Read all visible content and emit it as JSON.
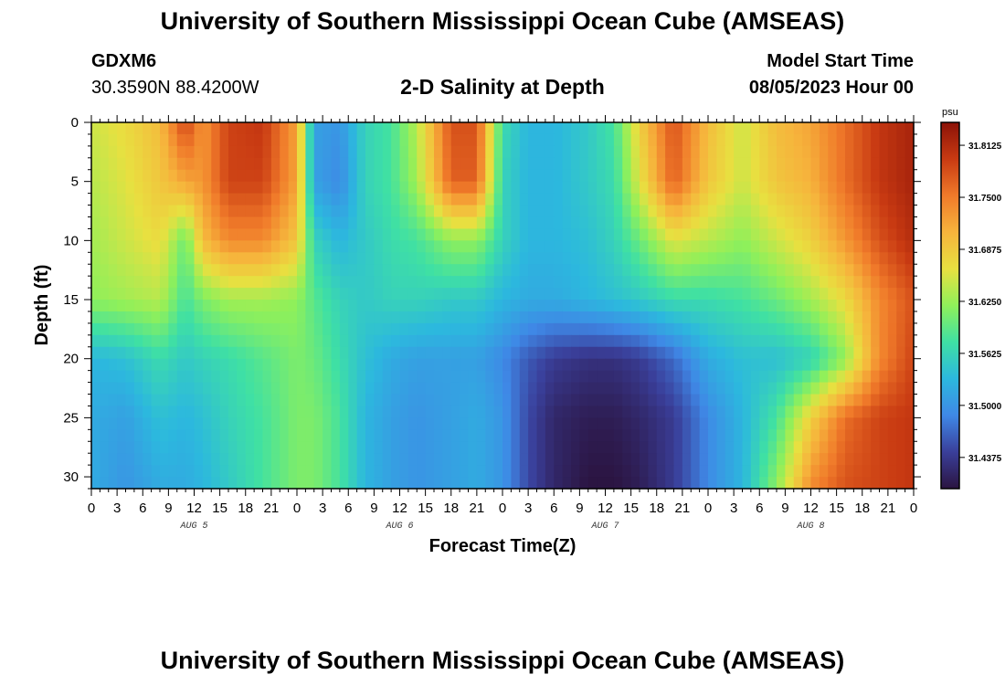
{
  "header": {
    "title": "University of Southern Mississippi Ocean Cube (AMSEAS)",
    "station": "GDXM6",
    "coords": "30.3590N  88.4200W",
    "subtitle": "2-D Salinity at Depth",
    "start_label": "Model Start Time",
    "start_value": "08/05/2023 Hour 00"
  },
  "footer": {
    "title": "University of Southern Mississippi Ocean Cube (AMSEAS)"
  },
  "colors": {
    "scale": [
      "#2b1440",
      "#3a3f9a",
      "#3f88e6",
      "#2cb8de",
      "#3fe0a4",
      "#8ff05a",
      "#e8e040",
      "#f6b43c",
      "#f07a2a",
      "#c83a12",
      "#8c1208"
    ]
  },
  "chart_data": {
    "type": "heatmap",
    "xlabel": "Forecast Time(Z)",
    "ylabel": "Depth (ft)",
    "x_hour_range": [
      0,
      96
    ],
    "y_range": [
      0,
      31
    ],
    "x_tick_labels": [
      "0",
      "3",
      "6",
      "9",
      "12",
      "15",
      "18",
      "21",
      "0",
      "3",
      "6",
      "9",
      "12",
      "15",
      "18",
      "21",
      "0",
      "3",
      "6",
      "9",
      "12",
      "15",
      "18",
      "21",
      "0",
      "3",
      "6",
      "9",
      "12",
      "15",
      "18",
      "21",
      "0"
    ],
    "y_ticks": [
      0,
      5,
      10,
      15,
      20,
      25,
      30
    ],
    "day_labels": [
      {
        "hour": 12,
        "label": "AUG 5"
      },
      {
        "hour": 36,
        "label": "AUG 6"
      },
      {
        "hour": 60,
        "label": "AUG 7"
      },
      {
        "hour": 84,
        "label": "AUG 8"
      }
    ],
    "colorbar": {
      "unit": "psu",
      "range": [
        31.4,
        31.84
      ],
      "tick_values": [
        31.8125,
        31.75,
        31.6875,
        31.625,
        31.5625,
        31.5,
        31.4375
      ],
      "tick_labels": [
        "31.8125",
        "31.7500",
        "31.6875",
        "31.6250",
        "31.5625",
        "31.5000",
        "31.4375"
      ]
    },
    "hours": [
      0,
      4,
      8,
      11,
      13,
      16,
      20,
      24,
      26,
      29,
      32,
      35,
      38,
      42,
      45,
      48,
      51,
      54,
      58,
      61,
      64,
      68,
      72,
      76,
      80,
      84,
      88,
      92,
      96
    ],
    "depths": [
      0,
      5,
      10,
      15,
      20,
      25,
      31
    ],
    "values": [
      [
        31.65,
        31.67,
        31.7,
        31.79,
        31.73,
        31.79,
        31.8,
        31.72,
        31.51,
        31.5,
        31.56,
        31.58,
        31.64,
        31.78,
        31.78,
        31.57,
        31.53,
        31.53,
        31.55,
        31.58,
        31.68,
        31.78,
        31.7,
        31.65,
        31.7,
        31.72,
        31.76,
        31.8,
        31.82
      ],
      [
        31.64,
        31.66,
        31.69,
        31.72,
        31.73,
        31.79,
        31.79,
        31.72,
        31.51,
        31.49,
        31.56,
        31.58,
        31.63,
        31.77,
        31.77,
        31.56,
        31.53,
        31.53,
        31.55,
        31.57,
        31.66,
        31.77,
        31.69,
        31.65,
        31.69,
        31.71,
        31.76,
        31.8,
        31.82
      ],
      [
        31.63,
        31.65,
        31.67,
        31.6,
        31.7,
        31.74,
        31.74,
        31.69,
        31.56,
        31.53,
        31.55,
        31.57,
        31.58,
        31.62,
        31.62,
        31.56,
        31.53,
        31.53,
        31.54,
        31.56,
        31.6,
        31.66,
        31.64,
        31.62,
        31.65,
        31.68,
        31.73,
        31.78,
        31.81
      ],
      [
        31.62,
        31.63,
        31.64,
        31.58,
        31.61,
        31.63,
        31.63,
        31.62,
        31.59,
        31.56,
        31.55,
        31.56,
        31.56,
        31.55,
        31.55,
        31.53,
        31.52,
        31.52,
        31.53,
        31.54,
        31.55,
        31.57,
        31.57,
        31.58,
        31.6,
        31.63,
        31.67,
        31.74,
        31.78
      ],
      [
        31.53,
        31.54,
        31.57,
        31.55,
        31.56,
        31.57,
        31.59,
        31.61,
        31.6,
        31.57,
        31.54,
        31.52,
        31.51,
        31.51,
        31.51,
        31.49,
        31.46,
        31.44,
        31.43,
        31.43,
        31.44,
        31.47,
        31.52,
        31.54,
        31.54,
        31.56,
        31.62,
        31.74,
        31.79
      ],
      [
        31.52,
        31.51,
        31.54,
        31.53,
        31.54,
        31.56,
        31.58,
        31.61,
        31.61,
        31.58,
        31.53,
        31.51,
        31.5,
        31.51,
        31.52,
        31.5,
        31.45,
        31.42,
        31.41,
        31.41,
        31.42,
        31.44,
        31.49,
        31.53,
        31.58,
        31.68,
        31.76,
        31.79,
        31.8
      ],
      [
        31.52,
        31.5,
        31.52,
        31.52,
        31.53,
        31.55,
        31.58,
        31.61,
        31.61,
        31.58,
        31.53,
        31.51,
        31.5,
        31.51,
        31.52,
        31.5,
        31.45,
        31.42,
        31.4,
        31.4,
        31.41,
        31.44,
        31.49,
        31.53,
        31.62,
        31.74,
        31.78,
        31.79,
        31.8
      ]
    ]
  }
}
